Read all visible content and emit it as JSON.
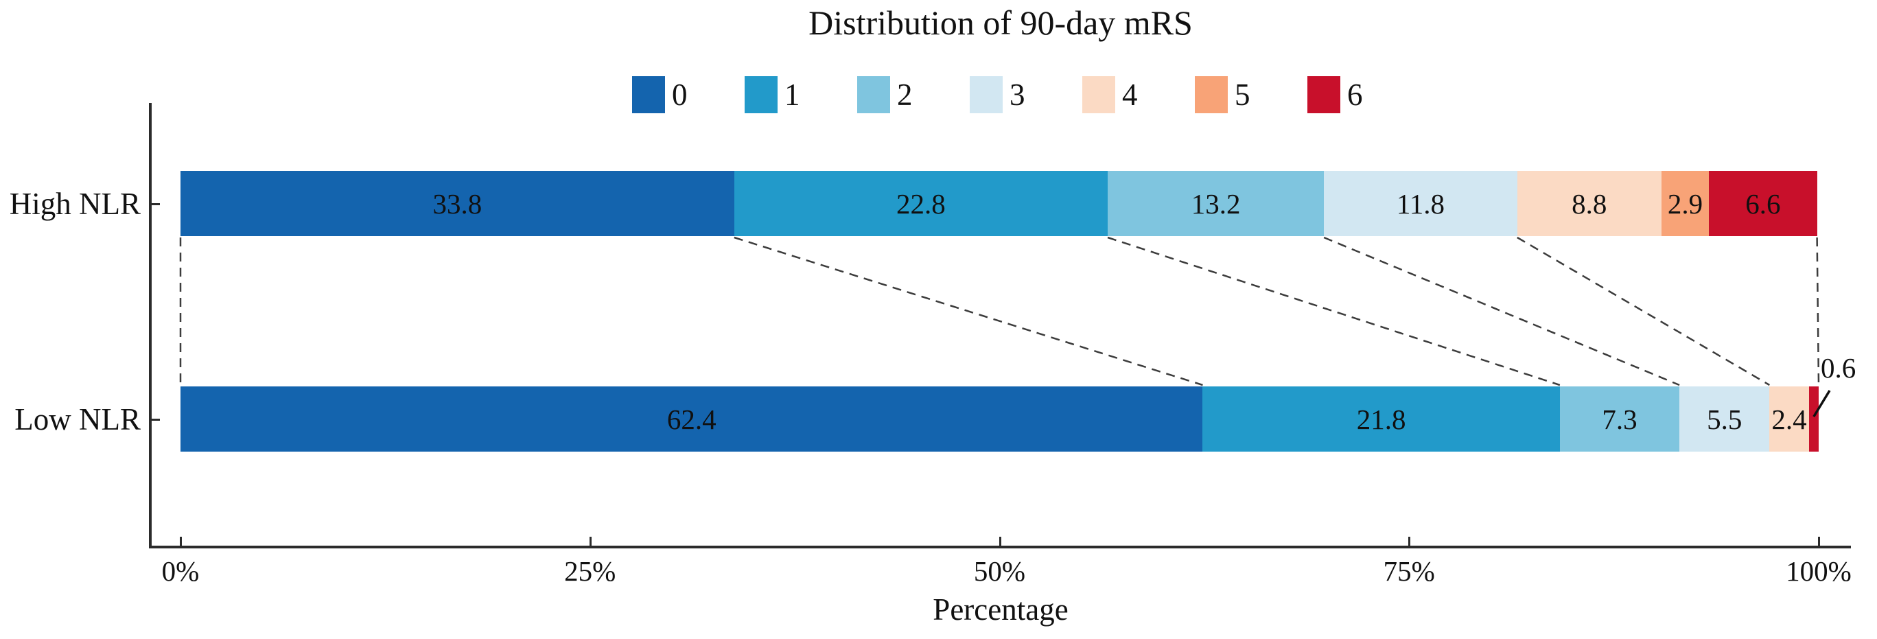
{
  "chart_data": {
    "type": "bar",
    "stacked": true,
    "orientation": "horizontal",
    "title": "Distribution of 90-day mRS",
    "xlabel": "Percentage",
    "categories": [
      "High NLR",
      "Low NLR"
    ],
    "series": [
      {
        "name": "0",
        "color": "#1464AE",
        "values": [
          33.8,
          62.4
        ]
      },
      {
        "name": "1",
        "color": "#229ACA",
        "values": [
          22.8,
          21.8
        ]
      },
      {
        "name": "2",
        "color": "#7FC5DF",
        "values": [
          13.2,
          7.3
        ]
      },
      {
        "name": "3",
        "color": "#D2E7F2",
        "values": [
          11.8,
          5.5
        ]
      },
      {
        "name": "4",
        "color": "#FBDAC4",
        "values": [
          8.8,
          2.4
        ]
      },
      {
        "name": "5",
        "color": "#F8A377",
        "values": [
          2.9,
          0.0
        ]
      },
      {
        "name": "6",
        "color": "#C8102B",
        "values": [
          6.6,
          0.6
        ]
      }
    ],
    "segment_labels": {
      "High NLR": [
        "33.8",
        "22.8",
        "13.2",
        "11.8",
        "8.8",
        "2.9",
        "6.6"
      ],
      "Low NLR": [
        "62.4",
        "21.8",
        "7.3",
        "5.5",
        "2.4",
        "",
        "0.6"
      ]
    },
    "x_ticks": [
      {
        "value": 0,
        "label": "0%"
      },
      {
        "value": 25,
        "label": "25%"
      },
      {
        "value": 50,
        "label": "50%"
      },
      {
        "value": 75,
        "label": "75%"
      },
      {
        "value": 100,
        "label": "100%"
      }
    ],
    "xlim": [
      0,
      100
    ],
    "grid": false,
    "legend_position": "top-center",
    "legend_labels": [
      "0",
      "1",
      "2",
      "3",
      "4",
      "5",
      "6"
    ],
    "connector_boundaries": [
      0,
      1,
      2,
      3,
      4,
      7
    ],
    "callout": {
      "row_index": 1,
      "series_index": 6,
      "label": "0.6"
    }
  }
}
